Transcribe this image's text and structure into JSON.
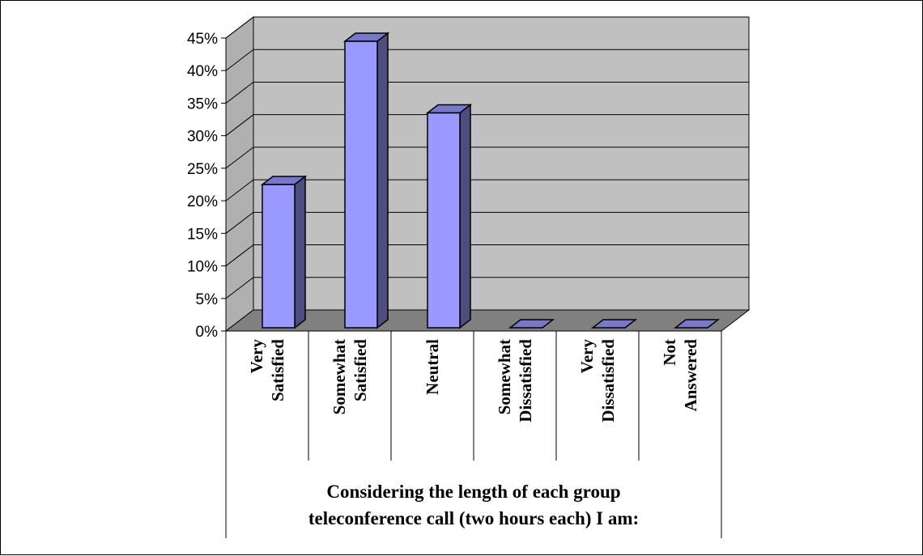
{
  "chart_data": {
    "type": "bar",
    "style": "3d-column",
    "title": "",
    "xlabel_lines": [
      "Considering the length of each group",
      "teleconference call (two hours each) I am:"
    ],
    "ylabel": "",
    "categories": [
      [
        "Very",
        "Satisfied"
      ],
      [
        "Somewhat",
        "Satisfied"
      ],
      [
        "Neutral"
      ],
      [
        "Somewhat",
        "Dissatisfied"
      ],
      [
        "Very",
        "Dissatisfied"
      ],
      [
        "Not",
        "Answered"
      ]
    ],
    "values": [
      0.22,
      0.44,
      0.33,
      0,
      0,
      0
    ],
    "ylim": [
      0,
      0.45
    ],
    "yticks": [
      "0%",
      "5%",
      "10%",
      "15%",
      "20%",
      "25%",
      "30%",
      "35%",
      "40%",
      "45%"
    ],
    "grid": true,
    "legend": "none",
    "colors": {
      "bar_front": "#9999ff",
      "bar_side": "#4d4d80",
      "bar_top": "#7777cc",
      "wall": "#c0c0c0",
      "side_wall": "#b0b0b0",
      "floor": "#808080"
    }
  }
}
